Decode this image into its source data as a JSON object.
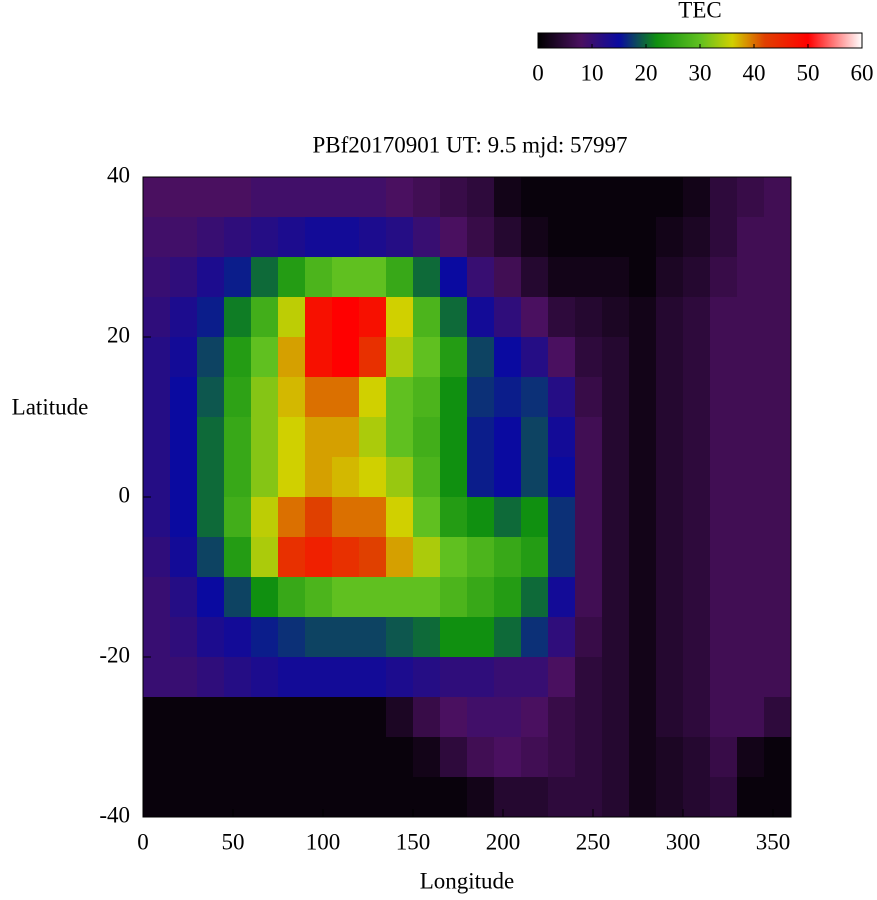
{
  "chart_data": {
    "type": "heatmap",
    "title": "PBf20170901  UT: 9.5  mjd: 57997",
    "x_label": "Longitude",
    "y_label": "Latitude",
    "colorbar_label": "TEC",
    "x": [
      7.5,
      22.5,
      37.5,
      52.5,
      67.5,
      82.5,
      97.5,
      112.5,
      127.5,
      142.5,
      157.5,
      172.5,
      187.5,
      202.5,
      217.5,
      232.5,
      247.5,
      262.5,
      277.5,
      292.5,
      307.5,
      322.5,
      337.5,
      352.5
    ],
    "y": [
      37.5,
      32.5,
      27.5,
      22.5,
      17.5,
      12.5,
      7.5,
      2.5,
      -2.5,
      -7.5,
      -12.5,
      -17.5,
      -22.5,
      -27.5,
      -32.5,
      -37.5
    ],
    "z": [
      [
        8,
        8,
        8,
        8,
        9,
        9,
        9,
        9,
        9,
        8,
        7,
        6,
        5,
        2,
        1,
        1,
        1,
        1,
        1,
        1,
        2,
        5,
        6,
        7
      ],
      [
        9,
        9,
        10,
        11,
        12,
        13,
        14,
        14,
        13,
        12,
        10,
        8,
        6,
        4,
        2,
        1,
        1,
        1,
        1,
        2,
        3,
        5,
        7,
        7
      ],
      [
        10,
        11,
        13,
        16,
        20,
        24,
        28,
        30,
        30,
        26,
        20,
        15,
        10,
        7,
        4,
        2,
        2,
        2,
        1,
        3,
        4,
        6,
        7,
        7
      ],
      [
        11,
        13,
        16,
        21,
        27,
        35,
        48,
        50,
        48,
        36,
        28,
        20,
        14,
        11,
        8,
        5,
        4,
        3,
        2,
        4,
        5,
        7,
        7,
        7
      ],
      [
        12,
        14,
        18,
        24,
        30,
        38,
        48,
        50,
        44,
        34,
        30,
        24,
        18,
        15,
        12,
        8,
        5,
        4,
        2,
        4,
        5,
        7,
        7,
        7
      ],
      [
        12,
        15,
        19,
        25,
        32,
        37,
        40,
        40,
        36,
        30,
        28,
        22,
        17,
        16,
        17,
        12,
        6,
        4,
        2,
        4,
        5,
        7,
        7,
        7
      ],
      [
        12,
        15,
        20,
        26,
        32,
        36,
        38,
        38,
        34,
        30,
        27,
        22,
        16,
        15,
        18,
        14,
        7,
        4,
        2,
        4,
        5,
        7,
        7,
        7
      ],
      [
        12,
        15,
        20,
        26,
        32,
        36,
        38,
        37,
        36,
        33,
        28,
        22,
        16,
        15,
        18,
        15,
        7,
        4,
        2,
        4,
        5,
        7,
        7,
        7
      ],
      [
        12,
        15,
        20,
        27,
        35,
        40,
        42,
        40,
        40,
        36,
        30,
        24,
        22,
        20,
        22,
        17,
        7,
        4,
        2,
        4,
        5,
        7,
        7,
        7
      ],
      [
        11,
        14,
        18,
        24,
        34,
        44,
        46,
        44,
        42,
        38,
        34,
        30,
        28,
        26,
        24,
        17,
        7,
        4,
        2,
        4,
        5,
        7,
        7,
        7
      ],
      [
        10,
        12,
        15,
        18,
        22,
        26,
        28,
        30,
        30,
        30,
        30,
        28,
        26,
        24,
        20,
        14,
        7,
        4,
        2,
        4,
        5,
        7,
        7,
        7
      ],
      [
        10,
        11,
        13,
        14,
        16,
        17,
        18,
        18,
        18,
        19,
        20,
        22,
        22,
        20,
        17,
        11,
        6,
        4,
        2,
        4,
        5,
        7,
        7,
        7
      ],
      [
        10,
        10,
        11,
        12,
        13,
        14,
        14,
        14,
        14,
        13,
        12,
        11,
        11,
        10,
        10,
        8,
        5,
        4,
        2,
        4,
        5,
        7,
        7,
        7
      ],
      [
        1,
        1,
        1,
        1,
        1,
        1,
        1,
        1,
        1,
        3,
        6,
        8,
        9,
        9,
        8,
        6,
        5,
        4,
        2,
        4,
        5,
        7,
        7,
        5
      ],
      [
        1,
        1,
        1,
        1,
        1,
        1,
        1,
        1,
        1,
        1,
        2,
        5,
        7,
        8,
        7,
        6,
        5,
        4,
        2,
        3,
        4,
        6,
        2,
        1
      ],
      [
        1,
        1,
        1,
        1,
        1,
        1,
        1,
        1,
        1,
        1,
        1,
        1,
        2,
        4,
        4,
        5,
        5,
        4,
        2,
        3,
        4,
        5,
        1,
        1
      ]
    ],
    "xlim": [
      0,
      360
    ],
    "ylim": [
      -40,
      40
    ],
    "xticks": [
      0,
      50,
      100,
      150,
      200,
      250,
      300,
      350
    ],
    "yticks": [
      -40,
      -20,
      0,
      20,
      40
    ],
    "clim": [
      0,
      60
    ],
    "cticks": [
      0,
      10,
      20,
      30,
      40,
      50,
      60
    ],
    "colormap": [
      [
        0,
        "#000000"
      ],
      [
        8,
        "#4a1060"
      ],
      [
        15,
        "#0a0aa0"
      ],
      [
        22,
        "#109010"
      ],
      [
        30,
        "#60c020"
      ],
      [
        36,
        "#d0d000"
      ],
      [
        42,
        "#e04000"
      ],
      [
        50,
        "#ff0000"
      ],
      [
        60,
        "#ffffff"
      ]
    ]
  }
}
